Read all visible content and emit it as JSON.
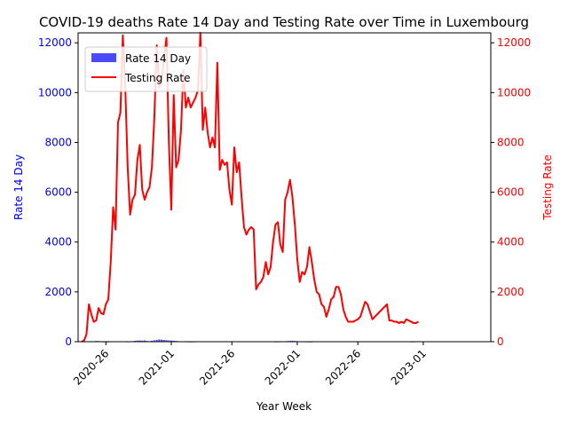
{
  "chart_data": {
    "type": "bar+line",
    "title": "COVID-19 deaths Rate 14 Day and Testing Rate over Time in Luxembourg",
    "xlabel": "Year Week",
    "ylabel_left": "Rate 14 Day",
    "ylabel_right": "Testing Rate",
    "ylim_left": [
      0,
      12400
    ],
    "ylim_right": [
      0,
      12400
    ],
    "y_ticks": [
      0,
      2000,
      4000,
      6000,
      8000,
      10000,
      12000
    ],
    "x_ticks": [
      "2020-26",
      "2021-01",
      "2021-26",
      "2022-01",
      "2022-26",
      "2023-01"
    ],
    "x_tick_index": [
      10,
      37,
      62,
      89,
      114,
      141
    ],
    "grid": false,
    "legend_position": "upper-left",
    "colors": {
      "bars": "#4a4aff",
      "line": "#ff0000",
      "left_axis": "#0000ff",
      "right_axis": "#ff0000"
    },
    "series": [
      {
        "name": "Rate 14 Day",
        "kind": "bar",
        "values": [
          0,
          0,
          0,
          0,
          8,
          15,
          30,
          25,
          10,
          5,
          3,
          2,
          0,
          0,
          0,
          0,
          0,
          0,
          0,
          5,
          12,
          20,
          35,
          45,
          50,
          40,
          50,
          30,
          20,
          40,
          55,
          70,
          90,
          80,
          70,
          60,
          50,
          45,
          40,
          30,
          20,
          15,
          10,
          8,
          5,
          3,
          2,
          0,
          0,
          0,
          0,
          0,
          0,
          0,
          0,
          0,
          0,
          0,
          0,
          0,
          0,
          0,
          0,
          0,
          0,
          0,
          0,
          0,
          0,
          0,
          0,
          0,
          0,
          0,
          0,
          0,
          0,
          0,
          0,
          0,
          3,
          5,
          8,
          12,
          18,
          25,
          35,
          40,
          30,
          20,
          15,
          10,
          8,
          5,
          3,
          2,
          0,
          0,
          0,
          0,
          0,
          0,
          0,
          0,
          0,
          0,
          0,
          0,
          0,
          0,
          0,
          0,
          0,
          0,
          0,
          0,
          0,
          0,
          0,
          0,
          0,
          0,
          0,
          0,
          0,
          0,
          0,
          0,
          0,
          0,
          0,
          0,
          0,
          0,
          0,
          0,
          5,
          3,
          0,
          0,
          0,
          0,
          0,
          0,
          0,
          0,
          0,
          0,
          0,
          0,
          0,
          0
        ]
      },
      {
        "name": "Testing Rate",
        "kind": "line",
        "values": [
          0,
          50,
          300,
          1500,
          1100,
          800,
          850,
          1350,
          1150,
          1100,
          1500,
          1700,
          3200,
          5400,
          4500,
          8800,
          9200,
          12300,
          10200,
          7000,
          5100,
          5700,
          5900,
          7300,
          7900,
          6100,
          5700,
          6000,
          6200,
          7000,
          9000,
          11900,
          10200,
          10400,
          11400,
          12200,
          8000,
          5300,
          9900,
          7000,
          7300,
          8500,
          10900,
          9400,
          9800,
          9400,
          9600,
          9800,
          10100,
          12400,
          8500,
          9400,
          8400,
          7800,
          8200,
          7800,
          11200,
          6900,
          7300,
          7100,
          7200,
          6100,
          5500,
          7800,
          6800,
          7200,
          5800,
          4600,
          4300,
          4500,
          4600,
          4500,
          2100,
          2300,
          2400,
          2600,
          3200,
          2700,
          3000,
          4000,
          4700,
          4800,
          3900,
          3600,
          5700,
          6000,
          6500,
          5800,
          4700,
          3300,
          2400,
          2800,
          2700,
          3000,
          3800,
          3200,
          2500,
          2000,
          1900,
          1500,
          1400,
          1000,
          1300,
          1700,
          1800,
          2200,
          2200,
          1900,
          1300,
          1000,
          800,
          800,
          800,
          850,
          900,
          1000,
          1300,
          1600,
          1500,
          1200,
          900,
          1000,
          1100,
          1200,
          1300,
          1400,
          1500,
          850,
          850,
          800,
          800,
          750,
          800,
          750,
          900,
          850,
          800,
          750,
          750,
          800,
          0,
          0,
          0,
          0,
          0,
          0,
          0,
          0,
          0,
          0
        ]
      }
    ]
  }
}
